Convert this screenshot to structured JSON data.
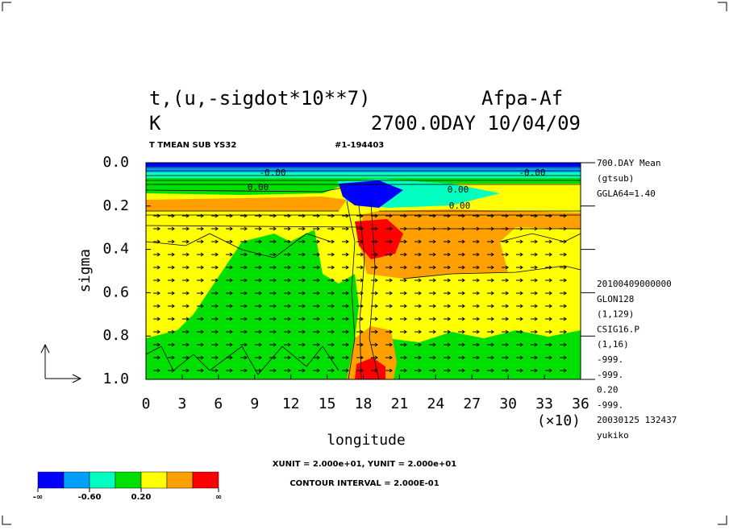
{
  "chart_data": {
    "type": "contour",
    "title": "t,(u,-sigdot*10**7)",
    "title_right": "Afpa-Af",
    "units": "K",
    "time": "2700.0DAY 10/04/09",
    "subtitle": "T TMEAN SUB YS32",
    "run_id": "#1-194403",
    "x_label": "longitude",
    "y_label": "sigma",
    "x_multiplier": "(×10)",
    "xlim": [
      0,
      36
    ],
    "xticks": [
      0,
      3,
      6,
      9,
      12,
      15,
      18,
      21,
      24,
      27,
      30,
      33,
      36
    ],
    "ylim": [
      0,
      1
    ],
    "yticks": [
      {
        "value": 0,
        "label": "0.0"
      },
      0.2,
      0.4,
      0.6,
      0.8,
      {
        "value": 1,
        "label": "1.0"
      }
    ],
    "info_top": [
      "700.DAY Mean",
      "(gtsub)",
      "GGLA64=1.40"
    ],
    "info_bottom": [
      "20100409000000",
      "GLON128",
      "(1,129)",
      "CSIG16.P",
      "(1,16)",
      "-999.",
      "-999.",
      "0.20",
      "-999.",
      "20030125 132437",
      "yukiko"
    ],
    "vector_units": "XUNIT = 2.000e+01, YUNIT = 2.000e+01",
    "contour_interval": "CONTOUR INTERVAL = 2.000E-01",
    "contour_labels": [
      "-0.00",
      "0.00",
      "0.00",
      "0.00",
      "-0.00"
    ],
    "colorbar": {
      "colors": [
        "#0000ff",
        "#00a0ff",
        "#00ffc0",
        "#00e000",
        "#ffff00",
        "#ffa000",
        "#ff0000"
      ],
      "labels": [
        "-∞",
        "-0.60",
        "0.20",
        "∞"
      ]
    }
  }
}
